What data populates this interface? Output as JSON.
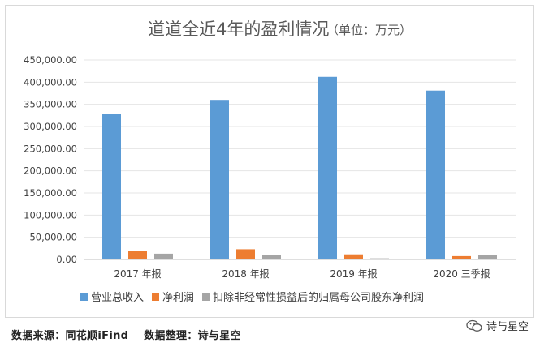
{
  "chart_data": {
    "type": "bar",
    "title": "道道全近4年的盈利情况",
    "subtitle": "（单位：万元）",
    "categories": [
      "2017 年报",
      "2018 年报",
      "2019 年报",
      "2020 三季报"
    ],
    "series": [
      {
        "name": "营业总收入",
        "color": "#5b9bd5",
        "values": [
          329000,
          360000,
          412000,
          381000
        ]
      },
      {
        "name": "净利润",
        "color": "#ed7d31",
        "values": [
          19000,
          23000,
          11500,
          7500
        ]
      },
      {
        "name": "扣除非经常性损益后的归属母公司股东净利润",
        "color": "#a5a5a5",
        "values": [
          13000,
          10000,
          2500,
          9500
        ]
      }
    ],
    "ylim": [
      0,
      450000
    ],
    "yticks": [
      "0.00",
      "50,000.00",
      "100,000.00",
      "150,000.00",
      "200,000.00",
      "250,000.00",
      "300,000.00",
      "350,000.00",
      "400,000.00",
      "450,000.00"
    ],
    "grid": true,
    "legend_position": "bottom"
  },
  "footer": {
    "source": "数据来源：同花顺iFind",
    "compiler": "数据整理：诗与星空"
  },
  "watermark": {
    "text": "诗与星空",
    "icon": "wechat-icon"
  }
}
